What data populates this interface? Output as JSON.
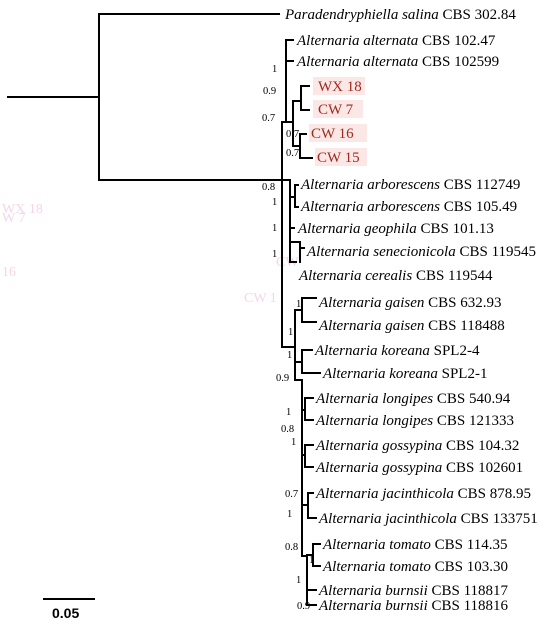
{
  "scale_bar": {
    "label": "0.05"
  },
  "taxa": [
    {
      "id": "t0",
      "genus": "Paradendryphiella",
      "species": "salina",
      "strain": "CBS 302.84",
      "highlight": false
    },
    {
      "id": "t1",
      "genus": "Alternaria",
      "species": "alternata",
      "strain": "CBS 102.47",
      "highlight": false
    },
    {
      "id": "t2",
      "genus": "Alternaria",
      "species": "alternata",
      "strain": "CBS 102599",
      "highlight": false
    },
    {
      "id": "t3",
      "genus": "",
      "species": "",
      "strain": "WX 18",
      "highlight": true
    },
    {
      "id": "t4",
      "genus": "",
      "species": "",
      "strain": "CW 7",
      "highlight": true
    },
    {
      "id": "t5",
      "genus": "",
      "species": "",
      "strain": "CW 16",
      "highlight": true
    },
    {
      "id": "t6",
      "genus": "",
      "species": "",
      "strain": "CW 15",
      "highlight": true
    },
    {
      "id": "t7",
      "genus": "Alternaria",
      "species": "arborescens",
      "strain": "CBS 112749",
      "highlight": false
    },
    {
      "id": "t8",
      "genus": "Alternaria",
      "species": "arborescens",
      "strain": "CBS 105.49",
      "highlight": false
    },
    {
      "id": "t9",
      "genus": "Alternaria",
      "species": "geophila",
      "strain": "CBS 101.13",
      "highlight": false
    },
    {
      "id": "t10",
      "genus": "Alternaria",
      "species": "senecionicola",
      "strain": "CBS 119545",
      "highlight": false
    },
    {
      "id": "t11",
      "genus": "Alternaria",
      "species": "cerealis",
      "strain": "CBS 119544",
      "highlight": false
    },
    {
      "id": "t12",
      "genus": "Alternaria",
      "species": "gaisen",
      "strain": "CBS 632.93",
      "highlight": false
    },
    {
      "id": "t13",
      "genus": "Alternaria",
      "species": "gaisen",
      "strain": "CBS 118488",
      "highlight": false
    },
    {
      "id": "t14",
      "genus": "Alternaria",
      "species": "koreana",
      "strain": "SPL2-4",
      "highlight": false
    },
    {
      "id": "t15",
      "genus": "Alternaria",
      "species": "koreana",
      "strain": "SPL2-1",
      "highlight": false
    },
    {
      "id": "t16",
      "genus": "Alternaria",
      "species": "longipes",
      "strain": "CBS 540.94",
      "highlight": false
    },
    {
      "id": "t17",
      "genus": "Alternaria",
      "species": "longipes",
      "strain": "CBS 121333",
      "highlight": false
    },
    {
      "id": "t18",
      "genus": "Alternaria",
      "species": "gossypina",
      "strain": "CBS 104.32",
      "highlight": false
    },
    {
      "id": "t19",
      "genus": "Alternaria",
      "species": "gossypina",
      "strain": "CBS 102601",
      "highlight": false
    },
    {
      "id": "t20",
      "genus": "Alternaria",
      "species": "jacinthicola",
      "strain": "CBS 878.95",
      "highlight": false
    },
    {
      "id": "t21",
      "genus": "Alternaria",
      "species": "jacinthicola",
      "strain": "CBS 133751",
      "highlight": false
    },
    {
      "id": "t22",
      "genus": "Alternaria",
      "species": "tomato",
      "strain": "CBS 114.35",
      "highlight": false
    },
    {
      "id": "t23",
      "genus": "Alternaria",
      "species": "tomato",
      "strain": "CBS 103.30",
      "highlight": false
    },
    {
      "id": "t24",
      "genus": "Alternaria",
      "species": "burnsii",
      "strain": "CBS 118817",
      "highlight": false
    },
    {
      "id": "t25",
      "genus": "Alternaria",
      "species": "burnsii",
      "strain": "CBS 118816",
      "highlight": false
    }
  ],
  "supports": [
    {
      "id": "s1",
      "value": "1"
    },
    {
      "id": "s2",
      "value": "0.9"
    },
    {
      "id": "s3",
      "value": "0.7"
    },
    {
      "id": "s4",
      "value": "0.7"
    },
    {
      "id": "s5",
      "value": "0.7"
    },
    {
      "id": "s6",
      "value": "0.8"
    },
    {
      "id": "s7",
      "value": "1"
    },
    {
      "id": "s8",
      "value": "1"
    },
    {
      "id": "s9",
      "value": "1"
    },
    {
      "id": "s10",
      "value": "1"
    },
    {
      "id": "s11",
      "value": "1"
    },
    {
      "id": "s12",
      "value": "1"
    },
    {
      "id": "s13",
      "value": "0.9"
    },
    {
      "id": "s14",
      "value": "1"
    },
    {
      "id": "s15",
      "value": "0.8"
    },
    {
      "id": "s16",
      "value": "1"
    },
    {
      "id": "s17",
      "value": "0.7"
    },
    {
      "id": "s18",
      "value": "1"
    },
    {
      "id": "s19",
      "value": "0.8"
    },
    {
      "id": "s20",
      "value": "1"
    },
    {
      "id": "s21",
      "value": "1"
    },
    {
      "id": "s22",
      "value": "0.9"
    }
  ],
  "colors": {
    "highlight_text": "#9e2a1c",
    "highlight_background": "#fbe7e6",
    "branch": "#000000"
  }
}
